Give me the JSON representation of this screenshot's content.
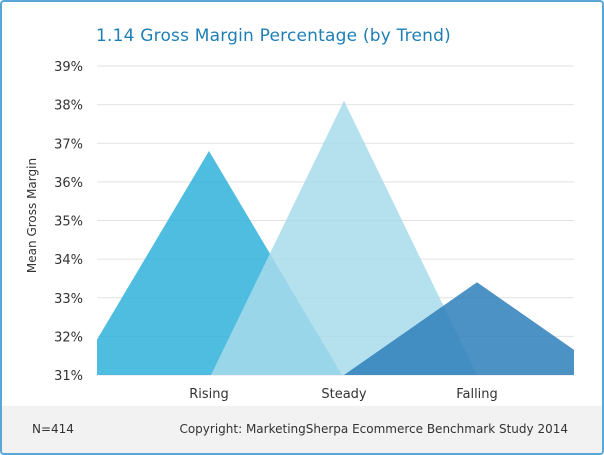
{
  "chart_data": {
    "type": "area",
    "title": "1.14 Gross Margin Percentage (by Trend)",
    "ylabel": "Mean Gross Margin",
    "xlabel": "",
    "categories": [
      "Rising",
      "Steady",
      "Falling"
    ],
    "values": [
      36.8,
      38.1,
      33.4
    ],
    "ylim": [
      31,
      39
    ],
    "yticks": [
      "31%",
      "32%",
      "33%",
      "34%",
      "35%",
      "36%",
      "37%",
      "38%",
      "39%"
    ],
    "grid": true,
    "colors": [
      "#2fb1da",
      "#a8daeb",
      "#2e7fba"
    ]
  },
  "footer": {
    "n": "N=414",
    "source": "Copyright: MarketingSherpa Ecommerce Benchmark Study 2014"
  }
}
